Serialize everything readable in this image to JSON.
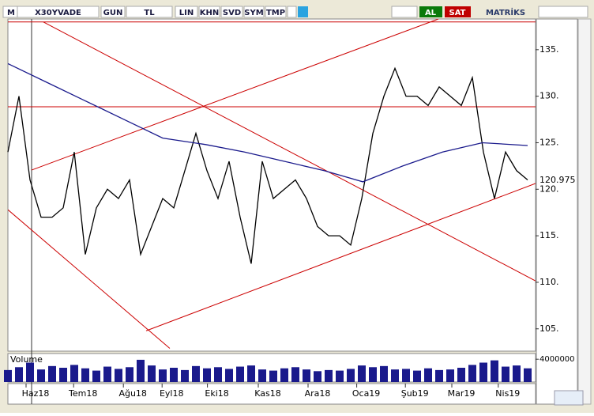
{
  "toolbar": {
    "buttons": [
      "M",
      "X30YVADE",
      "GUN",
      "TL",
      "LIN",
      "KHN",
      "SVD",
      "SYM",
      "TMP"
    ],
    "buy": "AL",
    "sell": "SAT",
    "logo": "MATRİKS"
  },
  "chart_data": {
    "type": "line",
    "xlim": [
      0,
      48
    ],
    "ylim": [
      102.6,
      138.3
    ],
    "yticks": [
      {
        "value": 105,
        "label": "105."
      },
      {
        "value": 110,
        "label": "110."
      },
      {
        "value": 115,
        "label": "115."
      },
      {
        "value": 120,
        "label": "120."
      },
      {
        "value": 125,
        "label": "125."
      },
      {
        "value": 130,
        "label": "130."
      },
      {
        "value": 135,
        "label": "135."
      }
    ],
    "xticks": [
      {
        "value": 2.5,
        "label": "Haz18"
      },
      {
        "value": 6.8,
        "label": "Tem18"
      },
      {
        "value": 11.3,
        "label": "Ağu18"
      },
      {
        "value": 14.8,
        "label": "Eyl18"
      },
      {
        "value": 18.9,
        "label": "Eki18"
      },
      {
        "value": 23.5,
        "label": "Kas18"
      },
      {
        "value": 28,
        "label": "Ara18"
      },
      {
        "value": 32.4,
        "label": "Oca19"
      },
      {
        "value": 36.8,
        "label": "Şub19"
      },
      {
        "value": 41,
        "label": "Mar19"
      },
      {
        "value": 45.2,
        "label": "Nis19"
      }
    ],
    "last_price": 120.975,
    "series": [
      {
        "color": "#000000",
        "x": [
          0,
          1,
          2,
          3,
          4,
          5,
          6,
          7,
          8,
          9,
          10,
          11,
          12,
          13,
          14,
          15,
          16,
          17,
          18,
          19,
          20,
          21,
          22,
          23,
          24,
          25,
          26,
          27,
          28,
          29,
          30,
          31,
          32,
          33,
          34,
          35,
          36,
          37,
          38,
          39,
          40,
          41,
          42,
          43,
          44,
          45,
          46,
          47
        ],
        "values": [
          124,
          130,
          121,
          117,
          117,
          118,
          124,
          113,
          118,
          120,
          119,
          121,
          113,
          116,
          119,
          118,
          122,
          126,
          122,
          119,
          123,
          117,
          112,
          123,
          119,
          120,
          121,
          119,
          116,
          115,
          115,
          114,
          119,
          126,
          130,
          133,
          130,
          130,
          129,
          131,
          130,
          129,
          132,
          124,
          119,
          124,
          122,
          121
        ]
      },
      {
        "color": "#1a1a8c",
        "x": [
          0,
          3.5,
          7,
          10.5,
          14,
          17.9,
          21.4,
          25,
          28.6,
          32.1,
          35.7,
          39.3,
          42.9,
          47
        ],
        "values": [
          133.5,
          131.5,
          129.5,
          127.5,
          125.5,
          124.8,
          124,
          123,
          122,
          120.8,
          122.5,
          124,
          125,
          124.7
        ]
      }
    ],
    "trend_lines": [
      {
        "color": "#cc0000",
        "x": [
          0,
          47.71
        ],
        "y": [
          137.98,
          137.98
        ]
      },
      {
        "color": "#cc0000",
        "x": [
          0,
          47.71
        ],
        "y": [
          128.87,
          128.87
        ]
      },
      {
        "color": "#cc0000",
        "x": [
          2.14,
          38.93
        ],
        "y": [
          122.06,
          138.3
        ]
      },
      {
        "color": "#cc0000",
        "x": [
          3.21,
          47.71
        ],
        "y": [
          137.98,
          110.15
        ]
      },
      {
        "color": "#cc0000",
        "x": [
          12.5,
          47.71
        ],
        "y": [
          104.79,
          120.62
        ]
      },
      {
        "color": "#cc0000",
        "x": [
          0,
          14.64
        ],
        "y": [
          117.8,
          102.9
        ]
      }
    ],
    "volume_panel": {
      "label": "Volume",
      "color": "#1a1a8c",
      "ylim": [
        0,
        5000000
      ],
      "yticks": [
        4000000
      ],
      "values": [
        2100000,
        2600000,
        3400000,
        2200000,
        2800000,
        2500000,
        3000000,
        2400000,
        2000000,
        2700000,
        2300000,
        2600000,
        3900000,
        2900000,
        2200000,
        2500000,
        2100000,
        2800000,
        2400000,
        2600000,
        2300000,
        2700000,
        2900000,
        2200000,
        2000000,
        2400000,
        2600000,
        2200000,
        1900000,
        2100000,
        2000000,
        2300000,
        2900000,
        2600000,
        2800000,
        2200000,
        2300000,
        2000000,
        2400000,
        2100000,
        2200000,
        2500000,
        3000000,
        3400000,
        3800000,
        2700000,
        2900000,
        2400000
      ]
    }
  }
}
